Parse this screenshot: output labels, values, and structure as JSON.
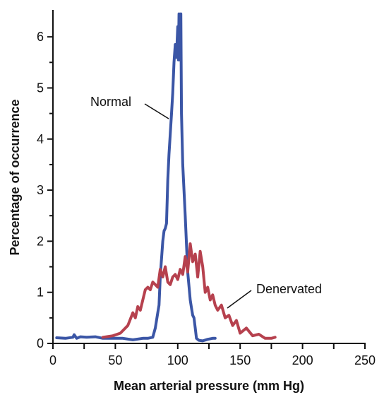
{
  "chart_data": {
    "type": "line",
    "title": "",
    "xlabel": "Mean arterial pressure (mm Hg)",
    "ylabel": "Percentage of occurrence",
    "xlim": [
      0,
      250
    ],
    "ylim": [
      0,
      6.5
    ],
    "xticks": [
      0,
      50,
      100,
      150,
      200,
      250
    ],
    "yticks": [
      0,
      1,
      2,
      3,
      4,
      5,
      6
    ],
    "grid": false,
    "legend": "none",
    "series": [
      {
        "name": "Normal",
        "color": "#3b56a6",
        "x": [
          3,
          10,
          16,
          17,
          19,
          22,
          27,
          34,
          40,
          48,
          56,
          64,
          72,
          76,
          80,
          82,
          84,
          85,
          86,
          88,
          89,
          90,
          91,
          92,
          93,
          94,
          95,
          96,
          97,
          98,
          99,
          100,
          100.5,
          101,
          101.5,
          102,
          102.5,
          103,
          104,
          106,
          108,
          110,
          111,
          112,
          113,
          114,
          115,
          117,
          120,
          124,
          128,
          130
        ],
        "y": [
          0.11,
          0.1,
          0.12,
          0.17,
          0.1,
          0.13,
          0.12,
          0.13,
          0.1,
          0.1,
          0.1,
          0.07,
          0.1,
          0.1,
          0.12,
          0.3,
          0.6,
          0.75,
          1.3,
          2.0,
          2.2,
          2.25,
          2.35,
          3.2,
          3.7,
          4.1,
          4.5,
          4.9,
          5.5,
          5.85,
          5.6,
          6.2,
          5.55,
          6.45,
          5.55,
          5.8,
          6.45,
          4.5,
          3.5,
          2.5,
          1.4,
          0.85,
          0.7,
          0.55,
          0.5,
          0.3,
          0.1,
          0.06,
          0.05,
          0.08,
          0.1,
          0.1
        ],
        "stroke_width": 4
      },
      {
        "name": "Denervated",
        "color": "#b6414e",
        "x": [
          40,
          48,
          54,
          60,
          64,
          66,
          68,
          70,
          72,
          74,
          76,
          78,
          80,
          82,
          84,
          86,
          88,
          90,
          92,
          94,
          96,
          98,
          100,
          102,
          104,
          106,
          108,
          110,
          112,
          114,
          116,
          118,
          120,
          122,
          124,
          126,
          128,
          130,
          132,
          135,
          138,
          141,
          144,
          147,
          150,
          155,
          160,
          165,
          170,
          175,
          178
        ],
        "y": [
          0.12,
          0.15,
          0.2,
          0.35,
          0.6,
          0.5,
          0.72,
          0.65,
          0.85,
          1.05,
          1.1,
          1.05,
          1.2,
          1.15,
          1.1,
          1.45,
          1.3,
          1.5,
          1.2,
          1.15,
          1.3,
          1.35,
          1.25,
          1.45,
          1.35,
          1.7,
          1.4,
          1.95,
          1.6,
          1.75,
          1.3,
          1.8,
          1.5,
          1.0,
          1.1,
          0.85,
          0.95,
          0.75,
          0.65,
          0.75,
          0.5,
          0.55,
          0.35,
          0.45,
          0.2,
          0.3,
          0.15,
          0.18,
          0.1,
          0.1,
          0.12
        ],
        "stroke_width": 4
      }
    ],
    "annotations": [
      {
        "text": "Normal",
        "series": "Normal"
      },
      {
        "text": "Denervated",
        "series": "Denervated"
      }
    ]
  }
}
